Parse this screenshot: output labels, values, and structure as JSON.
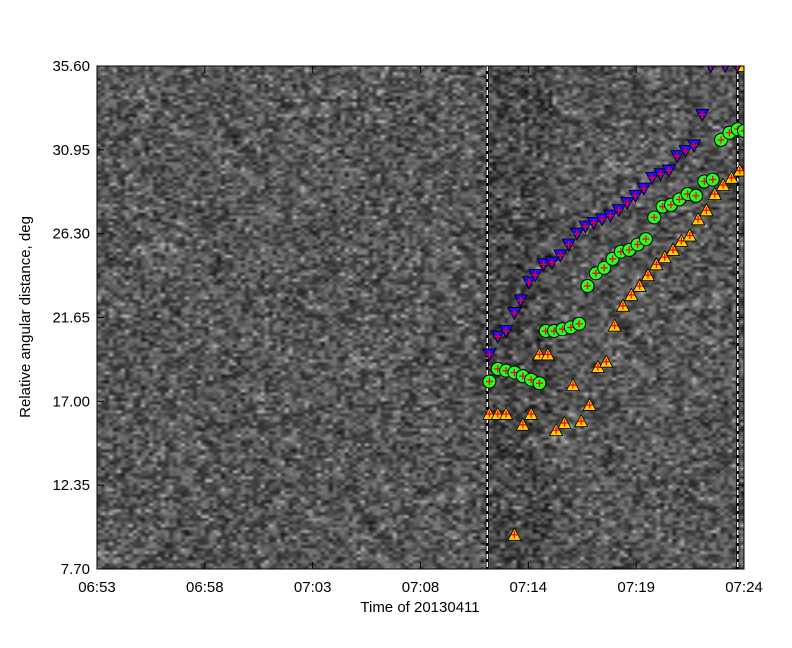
{
  "chart_data": {
    "type": "scatter",
    "title": "",
    "xlabel": "Time of 20130411",
    "ylabel": "Relative angular distance, deg",
    "x_ticks": [
      "06:53",
      "06:58",
      "07:03",
      "07:08",
      "07:14",
      "07:19",
      "07:24"
    ],
    "y_ticks": [
      "7.70",
      "12.35",
      "17.00",
      "21.65",
      "26.30",
      "30.95",
      "35.60"
    ],
    "xlim": [
      "06:53",
      "07:24"
    ],
    "ylim": [
      7.7,
      35.6
    ],
    "background": "grayscale noise time-distance map",
    "reference_lines": [
      "07:11.7",
      "07:23.7"
    ],
    "series": [
      {
        "marker": "triangle-down",
        "color": "#1a0dff",
        "cross_color": "#ff0000",
        "points": [
          [
            "07:11.8",
            19.6
          ],
          [
            "07:12.2",
            20.6
          ],
          [
            "07:12.6",
            20.9
          ],
          [
            "07:13.0",
            21.9
          ],
          [
            "07:13.3",
            22.6
          ],
          [
            "07:13.7",
            23.6
          ],
          [
            "07:14.0",
            24.0
          ],
          [
            "07:14.4",
            24.6
          ],
          [
            "07:14.8",
            24.7
          ],
          [
            "07:15.2",
            25.1
          ],
          [
            "07:15.6",
            25.7
          ],
          [
            "07:16.0",
            26.3
          ],
          [
            "07:16.4",
            26.7
          ],
          [
            "07:16.8",
            26.9
          ],
          [
            "07:17.2",
            27.1
          ],
          [
            "07:17.6",
            27.3
          ],
          [
            "07:18.0",
            27.6
          ],
          [
            "07:18.4",
            28.0
          ],
          [
            "07:18.8",
            28.4
          ],
          [
            "07:19.2",
            28.8
          ],
          [
            "07:19.6",
            29.4
          ],
          [
            "07:20.0",
            29.6
          ],
          [
            "07:20.4",
            29.8
          ],
          [
            "07:20.8",
            30.6
          ],
          [
            "07:21.2",
            30.9
          ],
          [
            "07:21.6",
            31.2
          ],
          [
            "07:22.0",
            32.9
          ],
          [
            "07:22.4",
            35.6
          ],
          [
            "07:23.1",
            35.6
          ],
          [
            "07:23.7",
            35.6
          ]
        ]
      },
      {
        "marker": "circle",
        "color": "#22ff22",
        "cross_color": "#ff0000",
        "points": [
          [
            "07:11.8",
            18.1
          ],
          [
            "07:12.2",
            18.8
          ],
          [
            "07:12.6",
            18.7
          ],
          [
            "07:13.0",
            18.6
          ],
          [
            "07:13.4",
            18.4
          ],
          [
            "07:13.8",
            18.2
          ],
          [
            "07:14.2",
            18.0
          ],
          [
            "07:14.5",
            20.9
          ],
          [
            "07:14.9",
            20.9
          ],
          [
            "07:15.3",
            21.0
          ],
          [
            "07:15.7",
            21.1
          ],
          [
            "07:16.1",
            21.3
          ],
          [
            "07:16.5",
            23.4
          ],
          [
            "07:16.9",
            24.1
          ],
          [
            "07:17.3",
            24.4
          ],
          [
            "07:17.7",
            24.9
          ],
          [
            "07:18.1",
            25.3
          ],
          [
            "07:18.5",
            25.4
          ],
          [
            "07:18.9",
            25.7
          ],
          [
            "07:19.3",
            26.0
          ],
          [
            "07:19.7",
            27.2
          ],
          [
            "07:20.1",
            27.8
          ],
          [
            "07:20.5",
            27.9
          ],
          [
            "07:20.9",
            28.2
          ],
          [
            "07:21.3",
            28.5
          ],
          [
            "07:21.7",
            28.4
          ],
          [
            "07:22.1",
            29.2
          ],
          [
            "07:22.5",
            29.3
          ],
          [
            "07:22.9",
            31.5
          ],
          [
            "07:23.3",
            31.9
          ],
          [
            "07:23.7",
            32.1
          ],
          [
            "07:24.0",
            32.0
          ]
        ]
      },
      {
        "marker": "triangle-up",
        "color": "#ffcc00",
        "cross_color": "#ff0000",
        "points": [
          [
            "07:11.8",
            16.3
          ],
          [
            "07:12.2",
            16.3
          ],
          [
            "07:12.6",
            16.3
          ],
          [
            "07:13.0",
            9.6
          ],
          [
            "07:13.4",
            15.7
          ],
          [
            "07:13.8",
            16.3
          ],
          [
            "07:14.2",
            19.6
          ],
          [
            "07:14.6",
            19.6
          ],
          [
            "07:15.0",
            15.4
          ],
          [
            "07:15.4",
            15.8
          ],
          [
            "07:15.8",
            17.9
          ],
          [
            "07:16.2",
            15.9
          ],
          [
            "07:16.6",
            16.8
          ],
          [
            "07:17.0",
            18.9
          ],
          [
            "07:17.4",
            19.2
          ],
          [
            "07:17.8",
            21.2
          ],
          [
            "07:18.2",
            22.3
          ],
          [
            "07:18.6",
            22.9
          ],
          [
            "07:19.0",
            23.4
          ],
          [
            "07:19.4",
            24.0
          ],
          [
            "07:19.8",
            24.6
          ],
          [
            "07:20.2",
            25.0
          ],
          [
            "07:20.6",
            25.4
          ],
          [
            "07:21.0",
            25.9
          ],
          [
            "07:21.4",
            26.2
          ],
          [
            "07:21.8",
            27.1
          ],
          [
            "07:22.2",
            27.6
          ],
          [
            "07:22.6",
            28.5
          ],
          [
            "07:23.0",
            29.0
          ],
          [
            "07:23.4",
            29.4
          ],
          [
            "07:23.8",
            29.8
          ],
          [
            "07:24.0",
            35.6
          ]
        ]
      }
    ]
  }
}
